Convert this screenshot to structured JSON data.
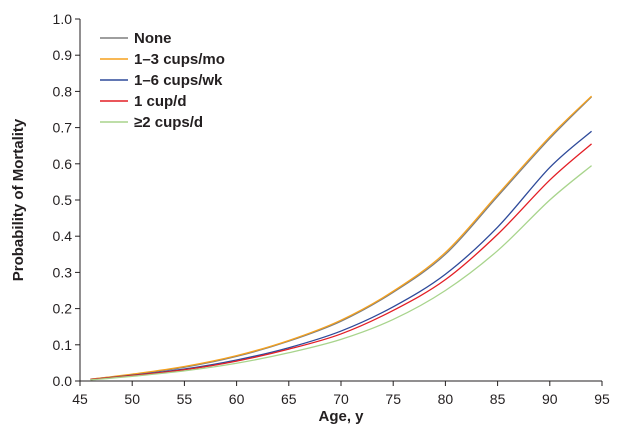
{
  "chart_data": {
    "type": "line",
    "xlabel": "Age, y",
    "ylabel": "Probability of Mortality",
    "xlim": [
      45,
      95
    ],
    "ylim": [
      0,
      1.0
    ],
    "xticks": [
      45,
      50,
      55,
      60,
      65,
      70,
      75,
      80,
      85,
      90,
      95
    ],
    "yticks": [
      0.0,
      0.1,
      0.2,
      0.3,
      0.4,
      0.5,
      0.6,
      0.7,
      0.8,
      0.9,
      1.0
    ],
    "xtick_labels": [
      "45",
      "50",
      "55",
      "60",
      "65",
      "70",
      "75",
      "80",
      "85",
      "90",
      "95"
    ],
    "ytick_labels": [
      "0.0",
      "0.1",
      "0.2",
      "0.3",
      "0.4",
      "0.5",
      "0.6",
      "0.7",
      "0.8",
      "0.9",
      "1.0"
    ],
    "grid": false,
    "legend_position": "top-left",
    "x": [
      46,
      50,
      55,
      60,
      65,
      70,
      75,
      80,
      85,
      90,
      94
    ],
    "series": [
      {
        "name": "None",
        "color": "#7f7f7f",
        "values": [
          0.005,
          0.018,
          0.038,
          0.068,
          0.11,
          0.165,
          0.245,
          0.35,
          0.51,
          0.67,
          0.785
        ]
      },
      {
        "name": "1–3 cups/mo",
        "color": "#f5a11d",
        "values": [
          0.005,
          0.019,
          0.04,
          0.07,
          0.112,
          0.168,
          0.248,
          0.355,
          0.515,
          0.675,
          0.787
        ]
      },
      {
        "name": "1–6 cups/wk",
        "color": "#2e4a9a",
        "values": [
          0.004,
          0.016,
          0.033,
          0.058,
          0.092,
          0.138,
          0.205,
          0.295,
          0.425,
          0.59,
          0.69
        ]
      },
      {
        "name": "1 cup/d",
        "color": "#e31e25",
        "values": [
          0.004,
          0.015,
          0.031,
          0.055,
          0.088,
          0.13,
          0.195,
          0.28,
          0.405,
          0.555,
          0.655
        ]
      },
      {
        "name": "≥2 cups/d",
        "color": "#a8d48c",
        "values": [
          0.003,
          0.013,
          0.028,
          0.049,
          0.078,
          0.115,
          0.17,
          0.25,
          0.36,
          0.5,
          0.595
        ]
      }
    ]
  }
}
